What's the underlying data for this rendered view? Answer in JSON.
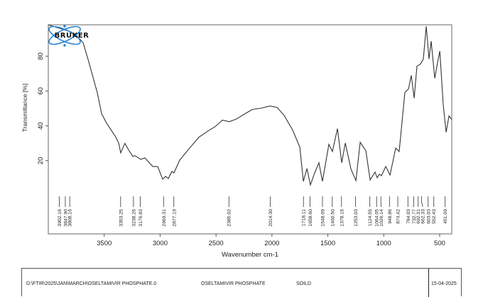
{
  "chart_data": {
    "type": "line",
    "title": "",
    "xlabel": "Wavenumber cm-1",
    "ylabel": "Transmittance [%]",
    "xlim": [
      4000,
      392
    ],
    "ylim": [
      -22,
      98
    ],
    "x_ticks": [
      3500,
      3000,
      2500,
      2000,
      1500,
      1000,
      500
    ],
    "y_ticks": [
      20,
      40,
      60,
      80
    ],
    "grid": false,
    "line_color": "#333333",
    "series": [
      {
        "name": "OSELTAMIVIR PHOSPHATE",
        "points": [
          [
            4000,
            98
          ],
          [
            3950,
            97
          ],
          [
            3900,
            96
          ],
          [
            3850,
            95
          ],
          [
            3800,
            94
          ],
          [
            3750,
            92
          ],
          [
            3689,
            87.8
          ],
          [
            3638,
            76.7
          ],
          [
            3562,
            59
          ],
          [
            3523,
            47
          ],
          [
            3479,
            41.6
          ],
          [
            3396,
            33.5
          ],
          [
            3370,
            30
          ],
          [
            3353,
            24.5
          ],
          [
            3315,
            30
          ],
          [
            3280,
            26
          ],
          [
            3244,
            22.5
          ],
          [
            3225,
            22.9
          ],
          [
            3174,
            20.8
          ],
          [
            3136,
            21.6
          ],
          [
            3066,
            16.7
          ],
          [
            3022,
            16.7
          ],
          [
            2977,
            9.4
          ],
          [
            2952,
            11
          ],
          [
            2926,
            9.8
          ],
          [
            2895,
            13.9
          ],
          [
            2876,
            13
          ],
          [
            2825,
            20.4
          ],
          [
            2736,
            27.3
          ],
          [
            2653,
            33.5
          ],
          [
            2571,
            37.1
          ],
          [
            2507,
            39.6
          ],
          [
            2443,
            43.3
          ],
          [
            2380,
            42.4
          ],
          [
            2316,
            44
          ],
          [
            2253,
            46.5
          ],
          [
            2177,
            49.4
          ],
          [
            2094,
            50.2
          ],
          [
            2018,
            51.4
          ],
          [
            1954,
            50.6
          ],
          [
            1891,
            46
          ],
          [
            1815,
            37.6
          ],
          [
            1751,
            27.8
          ],
          [
            1719,
            8.2
          ],
          [
            1687,
            15.5
          ],
          [
            1656,
            6.1
          ],
          [
            1618,
            13
          ],
          [
            1580,
            18.8
          ],
          [
            1548,
            8.2
          ],
          [
            1491,
            29.4
          ],
          [
            1459,
            25.3
          ],
          [
            1414,
            38.4
          ],
          [
            1376,
            18.8
          ],
          [
            1344,
            30.2
          ],
          [
            1293,
            15.1
          ],
          [
            1249,
            8.6
          ],
          [
            1211,
            30.6
          ],
          [
            1160,
            25.7
          ],
          [
            1122,
            9
          ],
          [
            1078,
            13.5
          ],
          [
            1059,
            10.2
          ],
          [
            1040,
            12.2
          ],
          [
            1021,
            11.4
          ],
          [
            982,
            16.7
          ],
          [
            944,
            11.8
          ],
          [
            893,
            27.3
          ],
          [
            862,
            25.3
          ],
          [
            811,
            59.2
          ],
          [
            779,
            61.2
          ],
          [
            754,
            69
          ],
          [
            728,
            55.9
          ],
          [
            703,
            74.3
          ],
          [
            671,
            75.5
          ],
          [
            646,
            78.4
          ],
          [
            620,
            97.1
          ],
          [
            595,
            78.4
          ],
          [
            576,
            88.6
          ],
          [
            544,
            67.3
          ],
          [
            518,
            76.7
          ],
          [
            499,
            82.9
          ],
          [
            468,
            52.2
          ],
          [
            442,
            36.3
          ],
          [
            417,
            45.7
          ],
          [
            392,
            43.7
          ]
        ]
      }
    ],
    "peak_labels": [
      "3902.16",
      "3847.90",
      "3808.16",
      "3353.25",
      "3238.26",
      "3176.83",
      "2969.31",
      "2877.19",
      "2385.02",
      "2014.30",
      "1718.11",
      "1658.60",
      "1548.09",
      "1460.50",
      "1378.16",
      "1253.03",
      "1124.55",
      "1064.05",
      "1026.14",
      "948.86",
      "874.42",
      "784.03",
      "732.77",
      "692.31",
      "662.33",
      "603.03",
      "552.43",
      "451.09"
    ]
  },
  "logo": {
    "text": "BRUKER",
    "color": "#1f7fd0"
  },
  "footer": {
    "file_path": "D:\\FTIR\\2025\\JAN\\MARCH\\OSELTAMIVIR PHOSPHATE.0",
    "sample_name": "OSELTAMIVIR PHOSPHATE",
    "sample_form": "SOILD",
    "date": "15-04-2025"
  }
}
